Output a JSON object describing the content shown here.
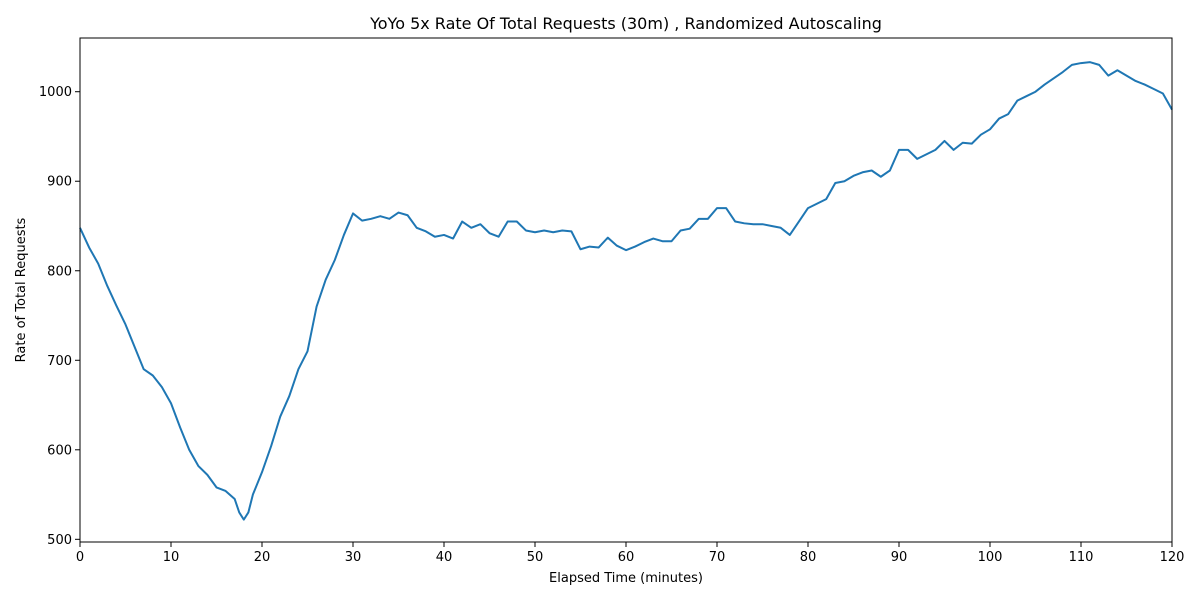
{
  "chart_data": {
    "type": "line",
    "title": "YoYo 5x Rate Of Total Requests (30m) , Randomized Autoscaling",
    "xlabel": "Elapsed Time (minutes)",
    "ylabel": "Rate of Total Requests",
    "xlim": [
      0,
      120
    ],
    "ylim": [
      497,
      1060
    ],
    "xticks": [
      0,
      10,
      20,
      30,
      40,
      50,
      60,
      70,
      80,
      90,
      100,
      110,
      120
    ],
    "yticks": [
      500,
      600,
      700,
      800,
      900,
      1000
    ],
    "grid": false,
    "line_color": "#1f77b4",
    "series": [
      {
        "x": [
          0,
          1,
          2,
          3,
          4,
          5,
          6,
          7,
          8,
          9,
          10,
          11,
          12,
          13,
          14,
          15,
          16,
          17,
          17.5,
          18,
          18.5,
          19,
          20,
          21,
          22,
          23,
          24,
          25,
          26,
          27,
          28,
          29,
          30,
          31,
          32,
          33,
          34,
          35,
          36,
          37,
          38,
          39,
          40,
          41,
          42,
          43,
          44,
          45,
          46,
          47,
          48,
          49,
          50,
          51,
          52,
          53,
          54,
          55,
          56,
          57,
          58,
          59,
          60,
          61,
          62,
          63,
          64,
          65,
          66,
          67,
          68,
          69,
          70,
          71,
          72,
          73,
          74,
          75,
          76,
          77,
          78,
          79,
          80,
          81,
          82,
          83,
          84,
          85,
          86,
          87,
          88,
          89,
          90,
          91,
          92,
          93,
          94,
          95,
          96,
          97,
          98,
          99,
          100,
          101,
          102,
          103,
          104,
          105,
          106,
          107,
          108,
          109,
          110,
          111,
          112,
          113,
          114,
          115,
          116,
          117,
          118,
          119,
          120
        ],
        "y": [
          848,
          826,
          808,
          783,
          761,
          740,
          715,
          690,
          683,
          670,
          652,
          625,
          600,
          582,
          572,
          558,
          554,
          545,
          530,
          522,
          530,
          550,
          575,
          604,
          637,
          660,
          690,
          710,
          760,
          790,
          812,
          840,
          864,
          856,
          858,
          861,
          858,
          865,
          862,
          848,
          844,
          838,
          840,
          836,
          855,
          848,
          852,
          842,
          838,
          855,
          855,
          845,
          843,
          845,
          843,
          845,
          844,
          824,
          827,
          826,
          837,
          828,
          823,
          827,
          832,
          836,
          833,
          833,
          845,
          847,
          858,
          858,
          870,
          870,
          855,
          853,
          852,
          852,
          850,
          848,
          840,
          855,
          870,
          875,
          880,
          898,
          900,
          906,
          910,
          912,
          905,
          912,
          935,
          935,
          925,
          930,
          935,
          945,
          935,
          943,
          942,
          952,
          958,
          970,
          975,
          990,
          995,
          1000,
          1008,
          1015,
          1022,
          1030,
          1032,
          1033,
          1030,
          1018,
          1024,
          1018,
          1012,
          1008,
          1003,
          998,
          980
        ]
      }
    ]
  }
}
